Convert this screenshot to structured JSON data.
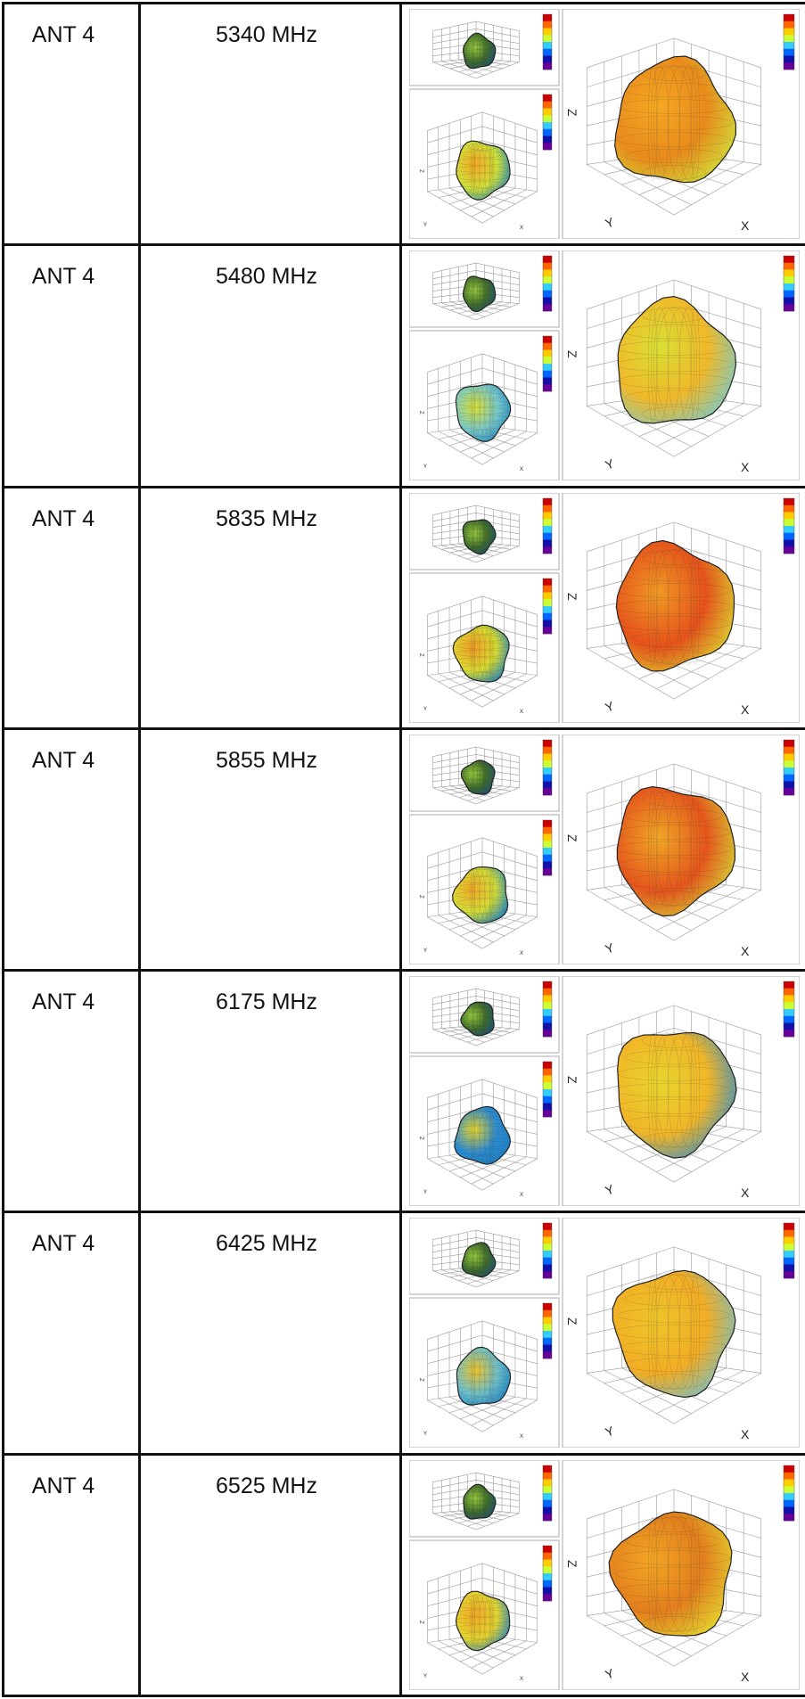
{
  "rows": [
    {
      "antenna": "ANT 4",
      "frequency": "5340 MHz",
      "total_colors": [
        "#f6a823",
        "#e88b1c",
        "#cfe03a"
      ]
    },
    {
      "antenna": "ANT 4",
      "frequency": "5480 MHz",
      "total_colors": [
        "#d9df35",
        "#f0b92a",
        "#79c9c8"
      ]
    },
    {
      "antenna": "ANT 4",
      "frequency": "5835 MHz",
      "total_colors": [
        "#f09a24",
        "#e5521b",
        "#d9dc31"
      ]
    },
    {
      "antenna": "ANT 4",
      "frequency": "5855 MHz",
      "total_colors": [
        "#f0a826",
        "#e4551c",
        "#d4de38"
      ]
    },
    {
      "antenna": "ANT 4",
      "frequency": "6175 MHz",
      "total_colors": [
        "#e8d52e",
        "#f1b628",
        "#2c8bd0"
      ]
    },
    {
      "antenna": "ANT 4",
      "frequency": "6425 MHz",
      "total_colors": [
        "#eec52b",
        "#f2ad25",
        "#6fbfc9"
      ]
    },
    {
      "antenna": "ANT 4",
      "frequency": "6525 MHz",
      "total_colors": [
        "#f2a624",
        "#e27e1d",
        "#e3d530"
      ]
    }
  ],
  "axis_labels": {
    "x": "X",
    "y": "Y",
    "z": "Z"
  },
  "colorbar": [
    "#cc0000",
    "#ff6600",
    "#ffcc00",
    "#ccff33",
    "#33ccff",
    "#0066ff",
    "#1111aa",
    "#660099"
  ]
}
